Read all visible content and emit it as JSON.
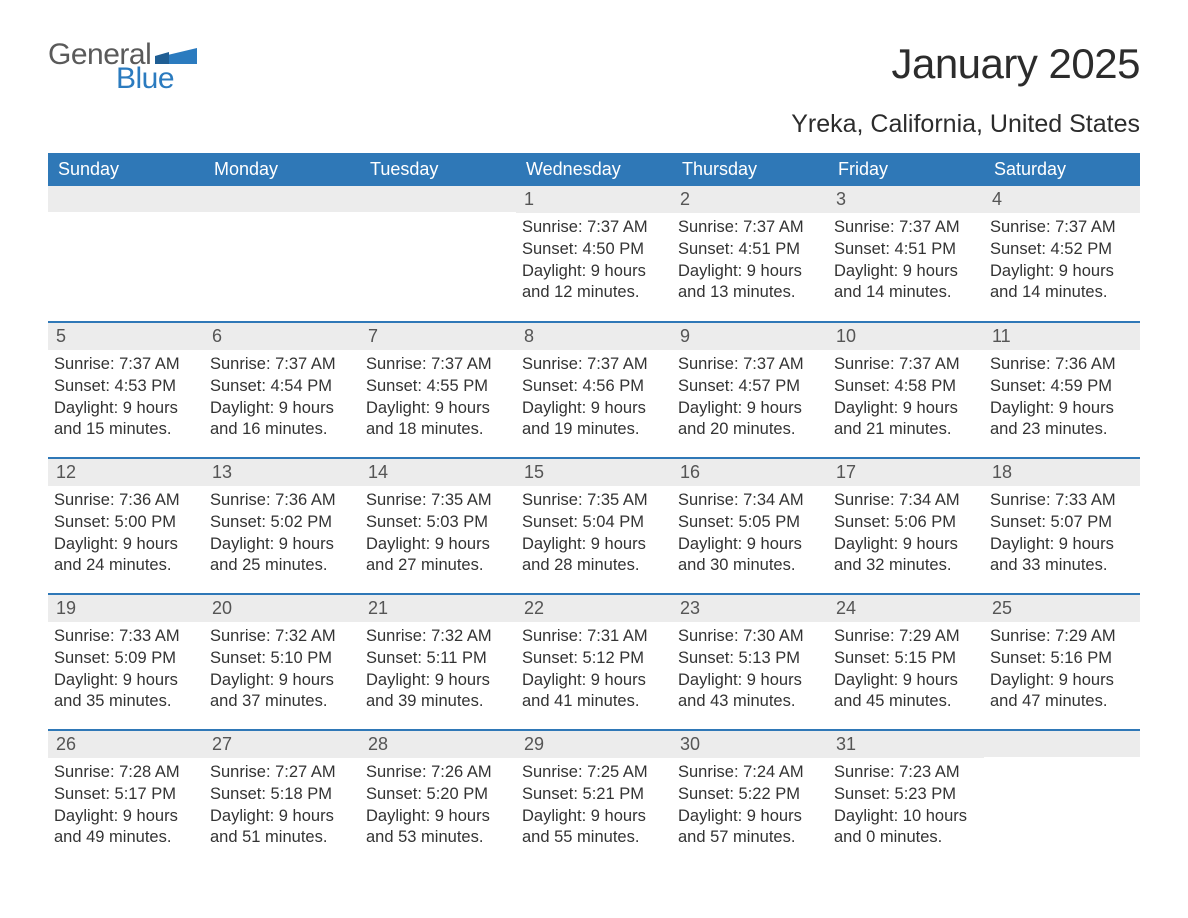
{
  "logo": {
    "text1": "General",
    "text2": "Blue",
    "accent_color": "#2b7bbf",
    "text_color": "#5a5a5a"
  },
  "title": "January 2025",
  "location": "Yreka, California, United States",
  "colors": {
    "header_bg": "#2f78b7",
    "header_text": "#ffffff",
    "daynum_bg": "#ececec",
    "daynum_text": "#555555",
    "body_text": "#333333",
    "rule": "#2f78b7",
    "background": "#ffffff"
  },
  "fonts": {
    "title_size": 42,
    "location_size": 25,
    "header_size": 18,
    "body_size": 16.5
  },
  "weekdays": [
    "Sunday",
    "Monday",
    "Tuesday",
    "Wednesday",
    "Thursday",
    "Friday",
    "Saturday"
  ],
  "weeks": [
    [
      {
        "num": "",
        "sunrise": "",
        "sunset": "",
        "daylight1": "",
        "daylight2": ""
      },
      {
        "num": "",
        "sunrise": "",
        "sunset": "",
        "daylight1": "",
        "daylight2": ""
      },
      {
        "num": "",
        "sunrise": "",
        "sunset": "",
        "daylight1": "",
        "daylight2": ""
      },
      {
        "num": "1",
        "sunrise": "Sunrise: 7:37 AM",
        "sunset": "Sunset: 4:50 PM",
        "daylight1": "Daylight: 9 hours",
        "daylight2": "and 12 minutes."
      },
      {
        "num": "2",
        "sunrise": "Sunrise: 7:37 AM",
        "sunset": "Sunset: 4:51 PM",
        "daylight1": "Daylight: 9 hours",
        "daylight2": "and 13 minutes."
      },
      {
        "num": "3",
        "sunrise": "Sunrise: 7:37 AM",
        "sunset": "Sunset: 4:51 PM",
        "daylight1": "Daylight: 9 hours",
        "daylight2": "and 14 minutes."
      },
      {
        "num": "4",
        "sunrise": "Sunrise: 7:37 AM",
        "sunset": "Sunset: 4:52 PM",
        "daylight1": "Daylight: 9 hours",
        "daylight2": "and 14 minutes."
      }
    ],
    [
      {
        "num": "5",
        "sunrise": "Sunrise: 7:37 AM",
        "sunset": "Sunset: 4:53 PM",
        "daylight1": "Daylight: 9 hours",
        "daylight2": "and 15 minutes."
      },
      {
        "num": "6",
        "sunrise": "Sunrise: 7:37 AM",
        "sunset": "Sunset: 4:54 PM",
        "daylight1": "Daylight: 9 hours",
        "daylight2": "and 16 minutes."
      },
      {
        "num": "7",
        "sunrise": "Sunrise: 7:37 AM",
        "sunset": "Sunset: 4:55 PM",
        "daylight1": "Daylight: 9 hours",
        "daylight2": "and 18 minutes."
      },
      {
        "num": "8",
        "sunrise": "Sunrise: 7:37 AM",
        "sunset": "Sunset: 4:56 PM",
        "daylight1": "Daylight: 9 hours",
        "daylight2": "and 19 minutes."
      },
      {
        "num": "9",
        "sunrise": "Sunrise: 7:37 AM",
        "sunset": "Sunset: 4:57 PM",
        "daylight1": "Daylight: 9 hours",
        "daylight2": "and 20 minutes."
      },
      {
        "num": "10",
        "sunrise": "Sunrise: 7:37 AM",
        "sunset": "Sunset: 4:58 PM",
        "daylight1": "Daylight: 9 hours",
        "daylight2": "and 21 minutes."
      },
      {
        "num": "11",
        "sunrise": "Sunrise: 7:36 AM",
        "sunset": "Sunset: 4:59 PM",
        "daylight1": "Daylight: 9 hours",
        "daylight2": "and 23 minutes."
      }
    ],
    [
      {
        "num": "12",
        "sunrise": "Sunrise: 7:36 AM",
        "sunset": "Sunset: 5:00 PM",
        "daylight1": "Daylight: 9 hours",
        "daylight2": "and 24 minutes."
      },
      {
        "num": "13",
        "sunrise": "Sunrise: 7:36 AM",
        "sunset": "Sunset: 5:02 PM",
        "daylight1": "Daylight: 9 hours",
        "daylight2": "and 25 minutes."
      },
      {
        "num": "14",
        "sunrise": "Sunrise: 7:35 AM",
        "sunset": "Sunset: 5:03 PM",
        "daylight1": "Daylight: 9 hours",
        "daylight2": "and 27 minutes."
      },
      {
        "num": "15",
        "sunrise": "Sunrise: 7:35 AM",
        "sunset": "Sunset: 5:04 PM",
        "daylight1": "Daylight: 9 hours",
        "daylight2": "and 28 minutes."
      },
      {
        "num": "16",
        "sunrise": "Sunrise: 7:34 AM",
        "sunset": "Sunset: 5:05 PM",
        "daylight1": "Daylight: 9 hours",
        "daylight2": "and 30 minutes."
      },
      {
        "num": "17",
        "sunrise": "Sunrise: 7:34 AM",
        "sunset": "Sunset: 5:06 PM",
        "daylight1": "Daylight: 9 hours",
        "daylight2": "and 32 minutes."
      },
      {
        "num": "18",
        "sunrise": "Sunrise: 7:33 AM",
        "sunset": "Sunset: 5:07 PM",
        "daylight1": "Daylight: 9 hours",
        "daylight2": "and 33 minutes."
      }
    ],
    [
      {
        "num": "19",
        "sunrise": "Sunrise: 7:33 AM",
        "sunset": "Sunset: 5:09 PM",
        "daylight1": "Daylight: 9 hours",
        "daylight2": "and 35 minutes."
      },
      {
        "num": "20",
        "sunrise": "Sunrise: 7:32 AM",
        "sunset": "Sunset: 5:10 PM",
        "daylight1": "Daylight: 9 hours",
        "daylight2": "and 37 minutes."
      },
      {
        "num": "21",
        "sunrise": "Sunrise: 7:32 AM",
        "sunset": "Sunset: 5:11 PM",
        "daylight1": "Daylight: 9 hours",
        "daylight2": "and 39 minutes."
      },
      {
        "num": "22",
        "sunrise": "Sunrise: 7:31 AM",
        "sunset": "Sunset: 5:12 PM",
        "daylight1": "Daylight: 9 hours",
        "daylight2": "and 41 minutes."
      },
      {
        "num": "23",
        "sunrise": "Sunrise: 7:30 AM",
        "sunset": "Sunset: 5:13 PM",
        "daylight1": "Daylight: 9 hours",
        "daylight2": "and 43 minutes."
      },
      {
        "num": "24",
        "sunrise": "Sunrise: 7:29 AM",
        "sunset": "Sunset: 5:15 PM",
        "daylight1": "Daylight: 9 hours",
        "daylight2": "and 45 minutes."
      },
      {
        "num": "25",
        "sunrise": "Sunrise: 7:29 AM",
        "sunset": "Sunset: 5:16 PM",
        "daylight1": "Daylight: 9 hours",
        "daylight2": "and 47 minutes."
      }
    ],
    [
      {
        "num": "26",
        "sunrise": "Sunrise: 7:28 AM",
        "sunset": "Sunset: 5:17 PM",
        "daylight1": "Daylight: 9 hours",
        "daylight2": "and 49 minutes."
      },
      {
        "num": "27",
        "sunrise": "Sunrise: 7:27 AM",
        "sunset": "Sunset: 5:18 PM",
        "daylight1": "Daylight: 9 hours",
        "daylight2": "and 51 minutes."
      },
      {
        "num": "28",
        "sunrise": "Sunrise: 7:26 AM",
        "sunset": "Sunset: 5:20 PM",
        "daylight1": "Daylight: 9 hours",
        "daylight2": "and 53 minutes."
      },
      {
        "num": "29",
        "sunrise": "Sunrise: 7:25 AM",
        "sunset": "Sunset: 5:21 PM",
        "daylight1": "Daylight: 9 hours",
        "daylight2": "and 55 minutes."
      },
      {
        "num": "30",
        "sunrise": "Sunrise: 7:24 AM",
        "sunset": "Sunset: 5:22 PM",
        "daylight1": "Daylight: 9 hours",
        "daylight2": "and 57 minutes."
      },
      {
        "num": "31",
        "sunrise": "Sunrise: 7:23 AM",
        "sunset": "Sunset: 5:23 PM",
        "daylight1": "Daylight: 10 hours",
        "daylight2": "and 0 minutes."
      },
      {
        "num": "",
        "sunrise": "",
        "sunset": "",
        "daylight1": "",
        "daylight2": ""
      }
    ]
  ]
}
